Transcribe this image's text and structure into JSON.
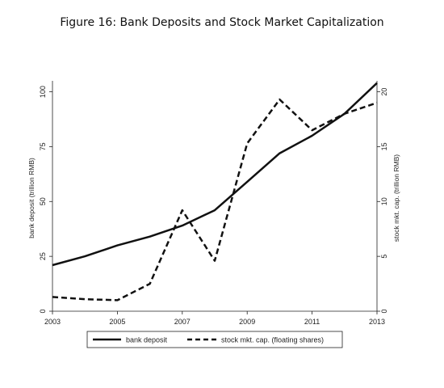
{
  "chart_data": {
    "type": "line",
    "title": "Figure 16: Bank Deposits and Stock Market Capitalization",
    "x": [
      2003,
      2004,
      2005,
      2006,
      2007,
      2008,
      2009,
      2010,
      2011,
      2012,
      2013
    ],
    "x_ticks": [
      "2003",
      "2005",
      "2007",
      "2009",
      "2011",
      "2013"
    ],
    "xlim": [
      2003,
      2013
    ],
    "ylabel": "bank deposit (trillion RMB)",
    "ylim": [
      0,
      105
    ],
    "y_ticks": [
      "0",
      "25",
      "50",
      "75",
      "100"
    ],
    "y2label": "stock mkt. cap. (trillion RMB)",
    "y2lim": [
      0,
      21
    ],
    "y2_ticks": [
      "0",
      "5",
      "10",
      "15",
      "20"
    ],
    "series": [
      {
        "name": "bank deposit",
        "axis": "left",
        "style": "solid",
        "values": [
          21,
          25,
          30,
          34,
          39,
          46,
          59,
          72,
          80,
          90,
          104
        ]
      },
      {
        "name": "stock mkt. cap. (floating shares)",
        "axis": "right",
        "style": "dashed",
        "values": [
          1.3,
          1.1,
          1.0,
          2.5,
          9.2,
          4.6,
          15.3,
          19.3,
          16.5,
          18.0,
          19.0
        ]
      }
    ],
    "grid": false,
    "legend": "bottom"
  }
}
